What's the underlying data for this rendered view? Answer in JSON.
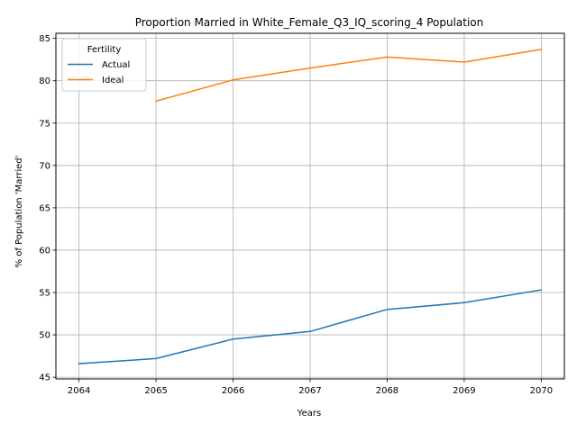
{
  "chart_data": {
    "type": "line",
    "title": "Proportion Married in White_Female_Q3_IQ_scoring_4 Population",
    "xlabel": "Years",
    "ylabel": "% of Population 'Married'",
    "x": [
      2064,
      2065,
      2066,
      2067,
      2068,
      2069,
      2070
    ],
    "xlim": [
      2063.7,
      2070.3
    ],
    "ylim": [
      44.8,
      85.6
    ],
    "xticks": [
      2064,
      2065,
      2066,
      2067,
      2068,
      2069,
      2070
    ],
    "yticks": [
      45,
      50,
      55,
      60,
      65,
      70,
      75,
      80,
      85
    ],
    "grid": true,
    "legend": {
      "title": "Fertility",
      "placement": "top-left"
    },
    "series": [
      {
        "name": "Actual",
        "color": "#1f77b4",
        "values": [
          46.6,
          47.2,
          49.5,
          50.4,
          53.0,
          53.8,
          55.3
        ]
      },
      {
        "name": "Ideal",
        "color": "#ff7f0e",
        "values": [
          null,
          77.6,
          80.1,
          81.5,
          82.8,
          82.2,
          83.7
        ]
      }
    ]
  }
}
